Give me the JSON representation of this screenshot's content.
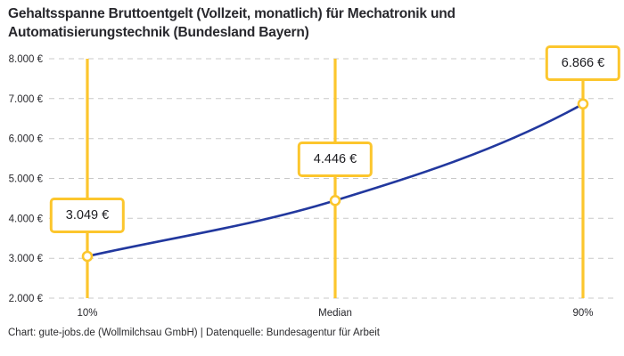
{
  "title": {
    "line1": "Gehaltsspanne Bruttoentgelt (Vollzeit, monatlich) für Mechatronik und",
    "line2": "Automatisierungstechnik (Bundesland Bayern)"
  },
  "footer": "Chart: gute-jobs.de (Wollmilchsau GmbH) | Datenquelle: Bundesagentur für Arbeit",
  "colors": {
    "accent_yellow": "#FCC62D",
    "line_blue": "#22389E",
    "grid_gray": "#C9C9C9",
    "text_dark": "#28282D",
    "box_background": "#FFFFFF"
  },
  "chart_data": {
    "type": "line",
    "title": "Gehaltsspanne Bruttoentgelt (Vollzeit, monatlich) für Mechatronik und Automatisierungstechnik (Bundesland Bayern)",
    "categories": [
      "10%",
      "Median",
      "90%"
    ],
    "values": [
      3049,
      4446,
      6866
    ],
    "value_labels": [
      "3.049 €",
      "4.446 €",
      "6.866 €"
    ],
    "xlabel": "",
    "ylabel": "",
    "ylim": [
      2000,
      8000
    ],
    "ytick_values": [
      2000,
      3000,
      4000,
      5000,
      6000,
      7000,
      8000
    ],
    "ytick_labels": [
      "2.000 €",
      "3.000 €",
      "4.000 €",
      "5.000 €",
      "6.000 €",
      "7.000 €",
      "8.000 €"
    ],
    "grid": "dashed horizontal gridlines",
    "legend": false,
    "annotations": "vertical yellow percentile lines with value callout boxes above each data point"
  }
}
